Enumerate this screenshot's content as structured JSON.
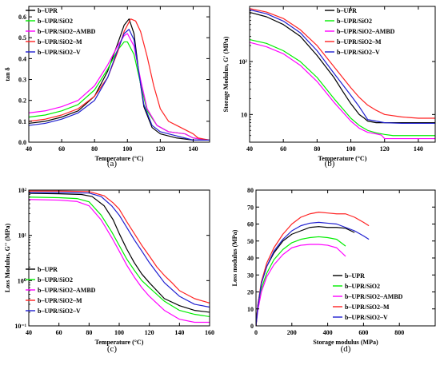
{
  "chart_data": [
    {
      "panel": "(a)",
      "type": "line",
      "xlabel": "Temperature (°C)",
      "ylabel": "tan δ",
      "xlim": [
        40,
        150
      ],
      "ylim": [
        0.0,
        0.65
      ],
      "xticks": [
        40,
        60,
        80,
        100,
        120,
        140
      ],
      "yticks": [
        0.0,
        0.1,
        0.2,
        0.3,
        0.4,
        0.5,
        0.6
      ],
      "ytick_decimals": 1,
      "yscale": "linear",
      "legend": "top-left",
      "series": [
        {
          "name": "b–UPR",
          "color": "#000000",
          "x": [
            40,
            50,
            60,
            70,
            80,
            88,
            94,
            98,
            101,
            104,
            107,
            110,
            115,
            120,
            130,
            140,
            150
          ],
          "y": [
            0.09,
            0.1,
            0.12,
            0.15,
            0.22,
            0.34,
            0.47,
            0.56,
            0.59,
            0.52,
            0.33,
            0.17,
            0.07,
            0.04,
            0.02,
            0.01,
            0.01
          ]
        },
        {
          "name": "b–UPR/SiO2",
          "color": "#00ee00",
          "x": [
            40,
            50,
            60,
            70,
            80,
            88,
            94,
            98,
            100,
            104,
            108,
            112,
            118,
            125,
            135,
            140,
            150
          ],
          "y": [
            0.12,
            0.13,
            0.15,
            0.18,
            0.25,
            0.35,
            0.44,
            0.48,
            0.48,
            0.42,
            0.28,
            0.15,
            0.08,
            0.05,
            0.04,
            0.02,
            0.01
          ]
        },
        {
          "name": "b–UPR/SiO2–AMBD",
          "color": "#ff00ff",
          "x": [
            40,
            50,
            60,
            70,
            80,
            88,
            94,
            98,
            100,
            104,
            108,
            112,
            118,
            125,
            135,
            140,
            150
          ],
          "y": [
            0.14,
            0.15,
            0.17,
            0.2,
            0.27,
            0.37,
            0.46,
            0.51,
            0.52,
            0.46,
            0.3,
            0.16,
            0.08,
            0.05,
            0.04,
            0.02,
            0.01
          ]
        },
        {
          "name": "b–UPR/SiO2–M",
          "color": "#ff2222",
          "x": [
            40,
            50,
            60,
            70,
            80,
            88,
            94,
            98,
            102,
            105,
            108,
            112,
            116,
            120,
            125,
            130,
            135,
            140,
            143,
            150
          ],
          "y": [
            0.1,
            0.11,
            0.13,
            0.16,
            0.22,
            0.31,
            0.43,
            0.53,
            0.59,
            0.58,
            0.53,
            0.41,
            0.27,
            0.16,
            0.1,
            0.08,
            0.06,
            0.04,
            0.02,
            0.01
          ]
        },
        {
          "name": "b–UPR/SiO2–V",
          "color": "#1f1fd0",
          "x": [
            40,
            50,
            60,
            70,
            80,
            88,
            94,
            98,
            101,
            104,
            107,
            110,
            115,
            120,
            130,
            140,
            150
          ],
          "y": [
            0.08,
            0.09,
            0.11,
            0.14,
            0.2,
            0.31,
            0.44,
            0.52,
            0.54,
            0.49,
            0.33,
            0.18,
            0.08,
            0.05,
            0.03,
            0.01,
            0.01
          ]
        }
      ]
    },
    {
      "panel": "(b)",
      "type": "line",
      "xlabel": "Temperature (°C)",
      "ylabel": "Storage Modulus, G' (MPa)",
      "xlim": [
        40,
        150
      ],
      "ylim": [
        3,
        1100
      ],
      "xticks": [
        40,
        60,
        80,
        100,
        120,
        140
      ],
      "yticks": [
        10,
        100
      ],
      "ytick_labels": [
        "10",
        "10²"
      ],
      "yscale": "log",
      "legend": "top-right",
      "series": [
        {
          "name": "b–UPR",
          "color": "#000000",
          "x": [
            40,
            50,
            60,
            70,
            80,
            90,
            95,
            100,
            105,
            108,
            110,
            115,
            120,
            130,
            140,
            150
          ],
          "y": [
            850,
            700,
            500,
            300,
            130,
            50,
            28,
            16,
            10,
            8.5,
            7.5,
            7,
            7,
            7,
            7,
            7
          ]
        },
        {
          "name": "b–UPR/SiO2",
          "color": "#00ee00",
          "x": [
            40,
            50,
            60,
            70,
            80,
            90,
            100,
            105,
            110,
            115,
            120,
            125,
            130,
            140,
            150
          ],
          "y": [
            260,
            220,
            160,
            100,
            50,
            20,
            8.5,
            6.2,
            5,
            4.5,
            4.2,
            4,
            4,
            4,
            4
          ]
        },
        {
          "name": "b–UPR/SiO2–AMBD",
          "color": "#ff00ff",
          "x": [
            40,
            50,
            60,
            70,
            80,
            90,
            100,
            105,
            110,
            115,
            118,
            120,
            125,
            130,
            140,
            150
          ],
          "y": [
            230,
            190,
            140,
            85,
            42,
            17,
            7.5,
            5.5,
            4.6,
            4.3,
            4.1,
            3.5,
            3.5,
            3.5,
            3.5,
            3.5
          ]
        },
        {
          "name": "b–UPR/SiO2–M",
          "color": "#ff2222",
          "x": [
            40,
            50,
            60,
            70,
            80,
            90,
            100,
            105,
            110,
            115,
            120,
            130,
            140,
            150
          ],
          "y": [
            1000,
            860,
            650,
            400,
            200,
            80,
            32,
            21,
            15,
            12,
            10,
            9,
            8.5,
            8.5
          ]
        },
        {
          "name": "b–UPR/SiO2–V",
          "color": "#1f1fd0",
          "x": [
            40,
            50,
            60,
            70,
            80,
            90,
            100,
            105,
            108,
            110,
            115,
            120,
            130,
            140,
            150
          ],
          "y": [
            950,
            800,
            580,
            350,
            160,
            60,
            23,
            14,
            10,
            8,
            7.5,
            7,
            6.8,
            6.8,
            6.8
          ]
        }
      ]
    },
    {
      "panel": "(c)",
      "type": "line",
      "xlabel": "Temperature (°C)",
      "ylabel": "Loss Modulus, G'' (MPa)",
      "xlim": [
        40,
        160
      ],
      "ylim": [
        0.1,
        100
      ],
      "xticks": [
        40,
        60,
        80,
        100,
        120,
        140,
        160
      ],
      "yticks": [
        0.1,
        1,
        10,
        100
      ],
      "ytick_labels": [
        "10⁻¹",
        "10⁰",
        "10¹",
        "10²"
      ],
      "yscale": "log",
      "legend": "bottom-left",
      "series": [
        {
          "name": "b–UPR",
          "color": "#000000",
          "x": [
            40,
            60,
            75,
            82,
            90,
            96,
            100,
            105,
            110,
            115,
            120,
            125,
            130,
            140,
            150,
            160
          ],
          "y": [
            85,
            83,
            80,
            72,
            45,
            22,
            11,
            5,
            2.5,
            1.4,
            0.9,
            0.6,
            0.4,
            0.28,
            0.22,
            0.2
          ]
        },
        {
          "name": "b–UPR/SiO2",
          "color": "#00ee00",
          "x": [
            40,
            60,
            72,
            80,
            88,
            95,
            100,
            105,
            110,
            115,
            120,
            130,
            140,
            150,
            160
          ],
          "y": [
            70,
            68,
            65,
            55,
            28,
            12,
            6,
            3,
            1.7,
            1.0,
            0.7,
            0.35,
            0.22,
            0.18,
            0.16
          ]
        },
        {
          "name": "b–UPR/SiO2–AMBD",
          "color": "#ff00ff",
          "x": [
            40,
            60,
            72,
            80,
            88,
            95,
            100,
            105,
            110,
            115,
            120,
            130,
            140,
            150,
            160
          ],
          "y": [
            62,
            60,
            56,
            45,
            22,
            9,
            4.5,
            2.2,
            1.2,
            0.7,
            0.45,
            0.22,
            0.14,
            0.12,
            0.12
          ]
        },
        {
          "name": "b–UPR/SiO2–M",
          "color": "#ff2222",
          "x": [
            40,
            60,
            80,
            90,
            96,
            100,
            105,
            110,
            115,
            120,
            125,
            130,
            135,
            140,
            150,
            160
          ],
          "y": [
            95,
            95,
            93,
            75,
            52,
            38,
            20,
            11,
            6,
            3.5,
            2,
            1.3,
            0.9,
            0.6,
            0.4,
            0.32
          ]
        },
        {
          "name": "b–UPR/SiO2–V",
          "color": "#1f1fd0",
          "x": [
            40,
            60,
            80,
            88,
            95,
            100,
            105,
            110,
            115,
            120,
            125,
            130,
            140,
            150,
            160
          ],
          "y": [
            88,
            88,
            86,
            72,
            45,
            28,
            15,
            8,
            4.5,
            2.5,
            1.5,
            0.9,
            0.45,
            0.3,
            0.26
          ]
        }
      ]
    },
    {
      "panel": "(d)",
      "type": "line",
      "xlabel": "Storage modulus (MPa)",
      "ylabel": "Loss modulus (MPa)",
      "xlim": [
        0,
        1000
      ],
      "ylim": [
        0,
        80
      ],
      "xticks": [
        0,
        200,
        400,
        600,
        800
      ],
      "yticks": [
        0,
        10,
        20,
        30,
        40,
        50,
        60,
        70,
        80
      ],
      "yscale": "linear",
      "legend": "bottom-right",
      "series": [
        {
          "name": "b–UPR",
          "color": "#000000",
          "x": [
            0,
            10,
            30,
            60,
            100,
            150,
            200,
            250,
            300,
            350,
            400,
            450,
            500,
            550
          ],
          "y": [
            0,
            12,
            25,
            35,
            43,
            50,
            54,
            56,
            58,
            58.5,
            58,
            58,
            57.5,
            55
          ]
        },
        {
          "name": "b–UPR/SiO2",
          "color": "#00ee00",
          "x": [
            0,
            10,
            30,
            60,
            100,
            150,
            200,
            250,
            300,
            350,
            400,
            450,
            500
          ],
          "y": [
            0,
            10,
            22,
            31,
            39,
            45,
            49,
            51,
            52,
            52.5,
            52,
            51,
            47
          ]
        },
        {
          "name": "b–UPR/SiO2–AMBD",
          "color": "#ff00ff",
          "x": [
            0,
            10,
            30,
            60,
            100,
            150,
            200,
            250,
            300,
            350,
            400,
            450,
            500
          ],
          "y": [
            0,
            9,
            20,
            29,
            36,
            42,
            46,
            47.5,
            48,
            48,
            47.5,
            46,
            41
          ]
        },
        {
          "name": "b–UPR/SiO2–M",
          "color": "#ff2222",
          "x": [
            0,
            10,
            30,
            60,
            100,
            150,
            200,
            250,
            300,
            350,
            400,
            450,
            500,
            550,
            600,
            630
          ],
          "y": [
            0,
            12,
            26,
            37,
            46,
            54,
            60,
            64,
            66,
            67,
            66.5,
            66,
            66,
            64,
            61,
            59
          ]
        },
        {
          "name": "b–UPR/SiO2–V",
          "color": "#1f1fd0",
          "x": [
            0,
            10,
            30,
            60,
            100,
            150,
            200,
            250,
            300,
            350,
            400,
            450,
            500,
            550,
            600,
            630
          ],
          "y": [
            0,
            11,
            25,
            35,
            44,
            51,
            56,
            59,
            60.5,
            61,
            60.5,
            60,
            58,
            56,
            53,
            51
          ]
        }
      ]
    }
  ]
}
